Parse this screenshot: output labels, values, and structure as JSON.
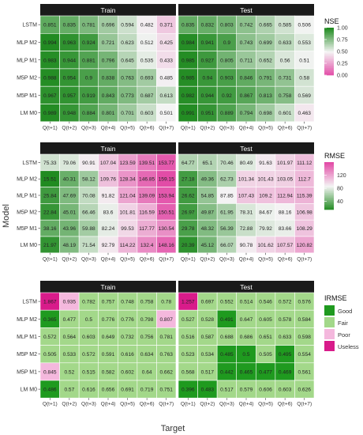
{
  "figure": {
    "y_axis_label": "Model",
    "x_axis_label": "Target"
  },
  "colors": {
    "strip_bg": "#1a1a1a",
    "strip_text": "#ffffff",
    "grid_line": "#ffffff",
    "axis_text": "#333333",
    "metric_low": "#e24aa6",
    "metric_mid": "#f4f4f4",
    "metric_high": "#1f8a1f",
    "irmse_good": "#1f9a1f",
    "irmse_fair": "#a3d88a",
    "irmse_poor": "#f4b8dd",
    "irmse_useless": "#d81b8a"
  },
  "chart_data": [
    {
      "type": "heatmap",
      "metric": "NSE",
      "panels": [
        "Train",
        "Test"
      ],
      "rows": [
        "LSTM",
        "MLP M2",
        "MLP M1",
        "M5P M2",
        "M5P M1",
        "LM M0"
      ],
      "columns": [
        "Q(t+1)",
        "Q(t+2)",
        "Q(t+3)",
        "Q(t+4)",
        "Q(t+5)",
        "Q(t+6)",
        "Q(t+7)"
      ],
      "legend": {
        "title": "NSE",
        "ticks": [
          "1.00",
          "0.75",
          "0.50",
          "0.25",
          "0.00"
        ],
        "tick_values": [
          1.0,
          0.75,
          0.5,
          0.25,
          0.0
        ]
      },
      "values": {
        "Train": [
          [
            0.851,
            0.835,
            0.781,
            0.696,
            0.594,
            0.482,
            0.371
          ],
          [
            0.994,
            0.963,
            0.924,
            0.721,
            0.623,
            0.512,
            0.425
          ],
          [
            0.983,
            0.944,
            0.881,
            0.796,
            0.645,
            0.535,
            0.433
          ],
          [
            0.988,
            0.954,
            0.9,
            0.838,
            0.763,
            0.693,
            0.485
          ],
          [
            0.967,
            0.957,
            0.919,
            0.843,
            0.773,
            0.687,
            0.613
          ],
          [
            0.989,
            0.948,
            0.884,
            0.801,
            0.701,
            0.603,
            0.501
          ]
        ],
        "Test": [
          [
            0.835,
            0.832,
            0.803,
            0.742,
            0.665,
            0.585,
            0.506
          ],
          [
            0.984,
            0.941,
            0.9,
            0.743,
            0.699,
            0.633,
            0.553
          ],
          [
            0.985,
            0.927,
            0.805,
            0.711,
            0.652,
            0.56,
            0.51
          ],
          [
            0.985,
            0.94,
            0.903,
            0.846,
            0.791,
            0.731,
            0.58
          ],
          [
            0.982,
            0.944,
            0.92,
            0.867,
            0.813,
            0.758,
            0.569
          ],
          [
            0.991,
            0.951,
            0.889,
            0.794,
            0.698,
            0.601,
            0.463
          ]
        ]
      },
      "value_text": {
        "Train": [
          [
            "0.851",
            "0.835",
            "0.781",
            "0.696",
            "0.594",
            "0.482",
            "0.371"
          ],
          [
            "0.994",
            "0.963",
            "0.924",
            "0.721",
            "0.623",
            "0.512",
            "0.425"
          ],
          [
            "0.983",
            "0.944",
            "0.881",
            "0.796",
            "0.645",
            "0.535",
            "0.433"
          ],
          [
            "0.988",
            "0.954",
            "0.9",
            "0.838",
            "0.763",
            "0.693",
            "0.485"
          ],
          [
            "0.967",
            "0.957",
            "0.919",
            "0.843",
            "0.773",
            "0.687",
            "0.613"
          ],
          [
            "0.989",
            "0.948",
            "0.884",
            "0.801",
            "0.701",
            "0.603",
            "0.501"
          ]
        ],
        "Test": [
          [
            "0.835",
            "0.832",
            "0.803",
            "0.742",
            "0.665",
            "0.585",
            "0.506"
          ],
          [
            "0.984",
            "0.941",
            "0.9",
            "0.743",
            "0.699",
            "0.633",
            "0.553"
          ],
          [
            "0.985",
            "0.927",
            "0.805",
            "0.711",
            "0.652",
            "0.56",
            "0.51"
          ],
          [
            "0.985",
            "0.94",
            "0.903",
            "0.846",
            "0.791",
            "0.731",
            "0.58"
          ],
          [
            "0.982",
            "0.944",
            "0.92",
            "0.867",
            "0.813",
            "0.758",
            "0.569"
          ],
          [
            "0.991",
            "0.951",
            "0.889",
            "0.794",
            "0.698",
            "0.601",
            "0.463"
          ]
        ]
      },
      "color_range": [
        0.0,
        1.0
      ]
    },
    {
      "type": "heatmap",
      "metric": "RMSE",
      "panels": [
        "Train",
        "Test"
      ],
      "rows": [
        "LSTM",
        "MLP M2",
        "MLP M1",
        "M5P M2",
        "M5P M1",
        "LM M0"
      ],
      "columns": [
        "Q(t+1)",
        "Q(t+2)",
        "Q(t+3)",
        "Q(t+4)",
        "Q(t+5)",
        "Q(t+6)",
        "Q(t+7)"
      ],
      "legend": {
        "title": "RMSE",
        "ticks": [
          "120",
          "80",
          "40"
        ],
        "tick_values": [
          120,
          80,
          40
        ]
      },
      "values": {
        "Train": [
          [
            75.33,
            79.06,
            90.91,
            107.04,
            123.59,
            139.51,
            153.77
          ],
          [
            15.51,
            40.31,
            58.12,
            109.76,
            128.34,
            146.85,
            159.15
          ],
          [
            25.84,
            47.69,
            70.08,
            91.82,
            121.04,
            139.09,
            153.94
          ],
          [
            22.84,
            45.01,
            66.46,
            83.6,
            101.81,
            116.59,
            150.51
          ],
          [
            38.16,
            43.96,
            59.88,
            82.24,
            99.53,
            117.77,
            130.54
          ],
          [
            21.97,
            48.19,
            71.54,
            92.79,
            114.22,
            132.4,
            148.16
          ]
        ],
        "Test": [
          [
            64.77,
            65.1,
            70.46,
            80.49,
            91.63,
            101.97,
            111.12
          ],
          [
            27.18,
            49.36,
            62.73,
            101.34,
            101.43,
            103.05,
            112.7
          ],
          [
            26.62,
            54.85,
            87.85,
            107.43,
            109.2,
            112.94,
            115.39
          ],
          [
            26.97,
            49.87,
            61.95,
            78.31,
            84.67,
            88.16,
            106.98
          ],
          [
            29.78,
            48.32,
            56.39,
            72.88,
            79.92,
            83.66,
            108.29
          ],
          [
            20.39,
            45.12,
            66.07,
            90.78,
            101.62,
            107.57,
            120.82
          ]
        ]
      },
      "value_text": {
        "Train": [
          [
            "75.33",
            "79.06",
            "90.91",
            "107.04",
            "123.59",
            "139.51",
            "153.77"
          ],
          [
            "15.51",
            "40.31",
            "58.12",
            "109.76",
            "128.34",
            "146.85",
            "159.15"
          ],
          [
            "25.84",
            "47.69",
            "70.08",
            "91.82",
            "121.04",
            "139.09",
            "153.94"
          ],
          [
            "22.84",
            "45.01",
            "66.46",
            "83.6",
            "101.81",
            "116.59",
            "150.51"
          ],
          [
            "38.16",
            "43.96",
            "59.88",
            "82.24",
            "99.53",
            "117.77",
            "130.54"
          ],
          [
            "21.97",
            "48.19",
            "71.54",
            "92.79",
            "114.22",
            "132.4",
            "148.16"
          ]
        ],
        "Test": [
          [
            "64.77",
            "65.1",
            "70.46",
            "80.49",
            "91.63",
            "101.97",
            "111.12"
          ],
          [
            "27.18",
            "49.36",
            "62.73",
            "101.34",
            "101.43",
            "103.05",
            "112.7"
          ],
          [
            "26.62",
            "54.85",
            "87.85",
            "107.43",
            "109.2",
            "112.94",
            "115.39"
          ],
          [
            "26.97",
            "49.87",
            "61.95",
            "78.31",
            "84.67",
            "88.16",
            "106.98"
          ],
          [
            "29.78",
            "48.32",
            "56.39",
            "72.88",
            "79.92",
            "83.66",
            "108.29"
          ],
          [
            "20.39",
            "45.12",
            "66.07",
            "90.78",
            "101.62",
            "107.57",
            "120.82"
          ]
        ]
      },
      "color_range": [
        15,
        160
      ]
    },
    {
      "type": "heatmap",
      "metric": "IRMSE",
      "panels": [
        "Train",
        "Test"
      ],
      "rows": [
        "LSTM",
        "MLP M2",
        "MLP M1",
        "M5P M2",
        "M5P M1",
        "LM M0"
      ],
      "columns": [
        "Q(t+1)",
        "Q(t+2)",
        "Q(t+3)",
        "Q(t+4)",
        "Q(t+5)",
        "Q(t+6)",
        "Q(t+7)"
      ],
      "legend": {
        "title": "IRMSE",
        "categories": [
          "Good",
          "Fair",
          "Poor",
          "Useless"
        ]
      },
      "values": {
        "Train": [
          [
            1.867,
            0.935,
            0.782,
            0.757,
            0.748,
            0.758,
            0.78
          ],
          [
            0.365,
            0.477,
            0.5,
            0.776,
            0.776,
            0.798,
            0.807
          ],
          [
            0.572,
            0.564,
            0.603,
            0.649,
            0.732,
            0.756,
            0.781
          ],
          [
            0.505,
            0.533,
            0.572,
            0.591,
            0.616,
            0.634,
            0.763
          ],
          [
            0.845,
            0.52,
            0.515,
            0.582,
            0.602,
            0.64,
            0.662
          ],
          [
            0.486,
            0.57,
            0.616,
            0.656,
            0.691,
            0.719,
            0.751
          ]
        ],
        "Test": [
          [
            1.257,
            0.697,
            0.552,
            0.514,
            0.546,
            0.572,
            0.576
          ],
          [
            0.527,
            0.528,
            0.491,
            0.647,
            0.605,
            0.578,
            0.584
          ],
          [
            0.516,
            0.587,
            0.688,
            0.686,
            0.651,
            0.633,
            0.598
          ],
          [
            0.523,
            0.534,
            0.485,
            0.5,
            0.505,
            0.495,
            0.554
          ],
          [
            0.568,
            0.517,
            0.442,
            0.465,
            0.477,
            0.469,
            0.561
          ],
          [
            0.396,
            0.483,
            0.517,
            0.579,
            0.606,
            0.603,
            0.626
          ]
        ]
      },
      "value_text": {
        "Train": [
          [
            "1.867",
            "0.935",
            "0.782",
            "0.757",
            "0.748",
            "0.758",
            "0.78"
          ],
          [
            "0.365",
            "0.477",
            "0.5",
            "0.776",
            "0.776",
            "0.798",
            "0.807"
          ],
          [
            "0.572",
            "0.564",
            "0.603",
            "0.649",
            "0.732",
            "0.756",
            "0.781"
          ],
          [
            "0.505",
            "0.533",
            "0.572",
            "0.591",
            "0.616",
            "0.634",
            "0.763"
          ],
          [
            "0.845",
            "0.52",
            "0.515",
            "0.582",
            "0.602",
            "0.64",
            "0.662"
          ],
          [
            "0.486",
            "0.57",
            "0.616",
            "0.656",
            "0.691",
            "0.719",
            "0.751"
          ]
        ],
        "Test": [
          [
            "1.257",
            "0.697",
            "0.552",
            "0.514",
            "0.546",
            "0.572",
            "0.576"
          ],
          [
            "0.527",
            "0.528",
            "0.491",
            "0.647",
            "0.605",
            "0.578",
            "0.584"
          ],
          [
            "0.516",
            "0.587",
            "0.688",
            "0.686",
            "0.651",
            "0.633",
            "0.598"
          ],
          [
            "0.523",
            "0.534",
            "0.485",
            "0.5",
            "0.505",
            "0.495",
            "0.554"
          ],
          [
            "0.568",
            "0.517",
            "0.442",
            "0.465",
            "0.477",
            "0.469",
            "0.561"
          ],
          [
            "0.396",
            "0.483",
            "0.517",
            "0.579",
            "0.606",
            "0.603",
            "0.626"
          ]
        ]
      },
      "categories": {
        "Train": [
          [
            "Useless",
            "Poor",
            "Fair",
            "Fair",
            "Fair",
            "Fair",
            "Fair"
          ],
          [
            "Good",
            "Fair",
            "Fair",
            "Fair",
            "Fair",
            "Fair",
            "Poor"
          ],
          [
            "Fair",
            "Fair",
            "Fair",
            "Fair",
            "Fair",
            "Fair",
            "Fair"
          ],
          [
            "Fair",
            "Fair",
            "Fair",
            "Fair",
            "Fair",
            "Fair",
            "Fair"
          ],
          [
            "Poor",
            "Fair",
            "Fair",
            "Fair",
            "Fair",
            "Fair",
            "Fair"
          ],
          [
            "Good",
            "Fair",
            "Fair",
            "Fair",
            "Fair",
            "Fair",
            "Fair"
          ]
        ],
        "Test": [
          [
            "Useless",
            "Fair",
            "Fair",
            "Fair",
            "Fair",
            "Fair",
            "Fair"
          ],
          [
            "Fair",
            "Fair",
            "Good",
            "Fair",
            "Fair",
            "Fair",
            "Fair"
          ],
          [
            "Fair",
            "Fair",
            "Fair",
            "Fair",
            "Fair",
            "Fair",
            "Fair"
          ],
          [
            "Fair",
            "Fair",
            "Good",
            "Good",
            "Fair",
            "Good",
            "Fair"
          ],
          [
            "Fair",
            "Fair",
            "Good",
            "Good",
            "Good",
            "Good",
            "Fair"
          ],
          [
            "Good",
            "Good",
            "Fair",
            "Fair",
            "Fair",
            "Fair",
            "Fair"
          ]
        ]
      }
    }
  ]
}
